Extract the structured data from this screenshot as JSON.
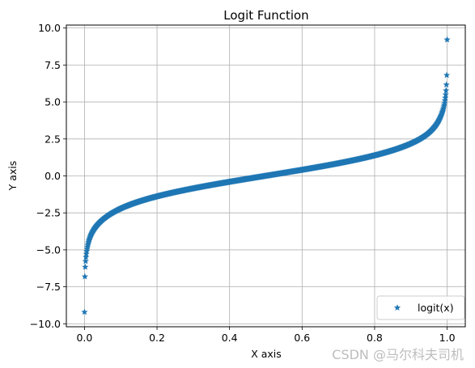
{
  "chart_data": {
    "type": "scatter",
    "title": "Logit Function",
    "xlabel": "X axis",
    "ylabel": "Y axis",
    "xlim": [
      -0.05,
      1.05
    ],
    "ylim": [
      -10.2,
      10.2
    ],
    "xticks": [
      0.0,
      0.2,
      0.4,
      0.6,
      0.8,
      1.0
    ],
    "xtick_labels": [
      "0.0",
      "0.2",
      "0.4",
      "0.6",
      "0.8",
      "1.0"
    ],
    "yticks": [
      -10.0,
      -7.5,
      -5.0,
      -2.5,
      0.0,
      2.5,
      5.0,
      7.5,
      10.0
    ],
    "ytick_labels": [
      "−10.0",
      "−7.5",
      "−5.0",
      "−2.5",
      "0.0",
      "2.5",
      "5.0",
      "7.5",
      "10.0"
    ],
    "grid": true,
    "legend_position": "bottom-right",
    "series": [
      {
        "name": "logit(x)",
        "marker": "star",
        "color": "#1f77b4",
        "function": "logit",
        "x_range": [
          0.0001,
          0.9999
        ],
        "num_points": 1000
      }
    ]
  },
  "watermark": "CSDN @马尔科夫司机"
}
